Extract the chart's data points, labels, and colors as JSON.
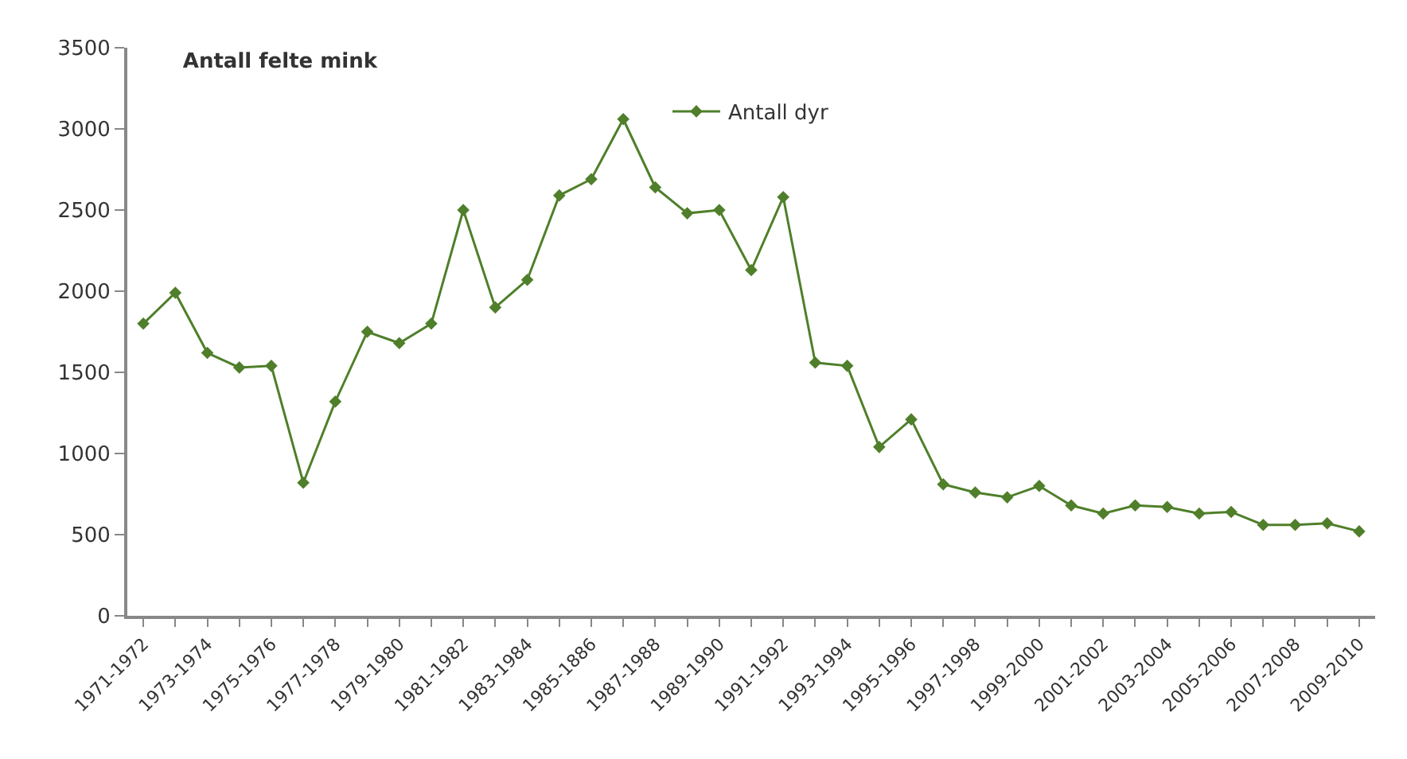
{
  "chart_data": {
    "type": "line",
    "title": "Antall felte mink",
    "categories": [
      "1971-1972",
      null,
      "1973-1974",
      null,
      "1975-1976",
      null,
      "1977-1978",
      null,
      "1979-1980",
      null,
      "1981-1982",
      null,
      "1983-1984",
      null,
      "1985-1886",
      null,
      "1987-1988",
      null,
      "1989-1990",
      null,
      "1991-1992",
      null,
      "1993-1994",
      null,
      "1995-1996",
      null,
      "1997-1998",
      null,
      "1999-2000",
      null,
      "2001-2002",
      null,
      "2003-2004",
      null,
      "2005-2006",
      null,
      "2007-2008",
      null,
      "2009-2010"
    ],
    "series": [
      {
        "name": "Antall dyr",
        "color": "#4f7f2a",
        "values": [
          1800,
          1990,
          1620,
          1530,
          1540,
          820,
          1320,
          1750,
          1680,
          1800,
          2500,
          1900,
          2070,
          2590,
          2690,
          3060,
          2640,
          2480,
          2500,
          2130,
          2580,
          1560,
          1540,
          1040,
          1210,
          810,
          760,
          730,
          800,
          680,
          630,
          680,
          670,
          630,
          640,
          560,
          560,
          570,
          520
        ]
      }
    ],
    "ylim": [
      0,
      3500
    ],
    "yticks": [
      0,
      500,
      1000,
      1500,
      2000,
      2500,
      3000,
      3500
    ],
    "legend": "top",
    "marker": "diamond",
    "line_style": "solid"
  }
}
